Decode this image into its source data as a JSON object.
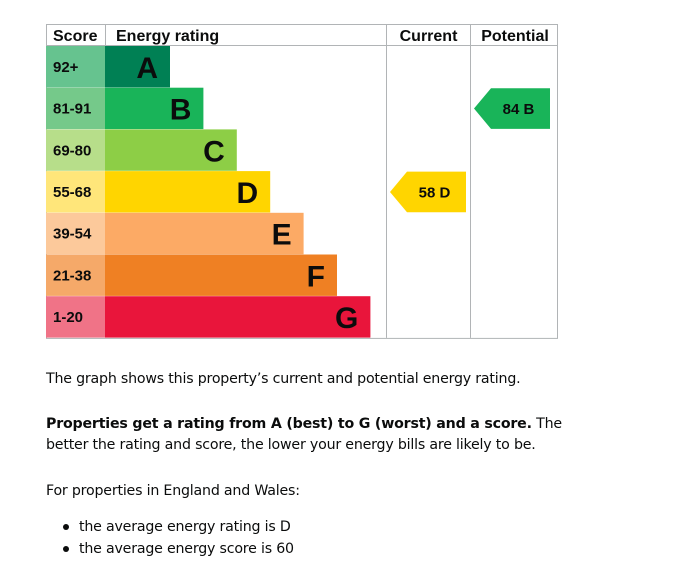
{
  "chart_data": {
    "type": "table",
    "columns": [
      "Score",
      "Energy rating",
      "Current",
      "Potential"
    ],
    "bands": [
      {
        "range": "92+",
        "letter": "A",
        "min": 92,
        "color": "#008054",
        "score_bg": "#66c38f"
      },
      {
        "range": "81-91",
        "letter": "B",
        "min": 81,
        "color": "#19b459",
        "score_bg": "#75c98a"
      },
      {
        "range": "69-80",
        "letter": "C",
        "min": 69,
        "color": "#8dce46",
        "score_bg": "#b7de8a"
      },
      {
        "range": "55-68",
        "letter": "D",
        "min": 55,
        "color": "#ffd500",
        "score_bg": "#ffe67a"
      },
      {
        "range": "39-54",
        "letter": "E",
        "min": 39,
        "color": "#fcaa65",
        "score_bg": "#fcc99b"
      },
      {
        "range": "21-38",
        "letter": "F",
        "min": 21,
        "color": "#ef8023",
        "score_bg": "#f5a969"
      },
      {
        "range": "1-20",
        "letter": "G",
        "min": 1,
        "color": "#e9153b",
        "score_bg": "#f07387"
      }
    ],
    "current": {
      "score": 58,
      "letter": "D",
      "label": "58 D",
      "color": "#ffd500"
    },
    "potential": {
      "score": 84,
      "letter": "B",
      "label": "84 B",
      "color": "#19b459"
    }
  },
  "text": {
    "p1": "The graph shows this property’s current and potential energy rating.",
    "p2_bold": "Properties get a rating from A (best) to G (worst) and a score.",
    "p2_rest": " The better the rating and score, the lower your energy bills are likely to be.",
    "p3": "For properties in England and Wales:",
    "bullets": [
      "the average energy rating is D",
      "the average energy score is 60"
    ]
  }
}
